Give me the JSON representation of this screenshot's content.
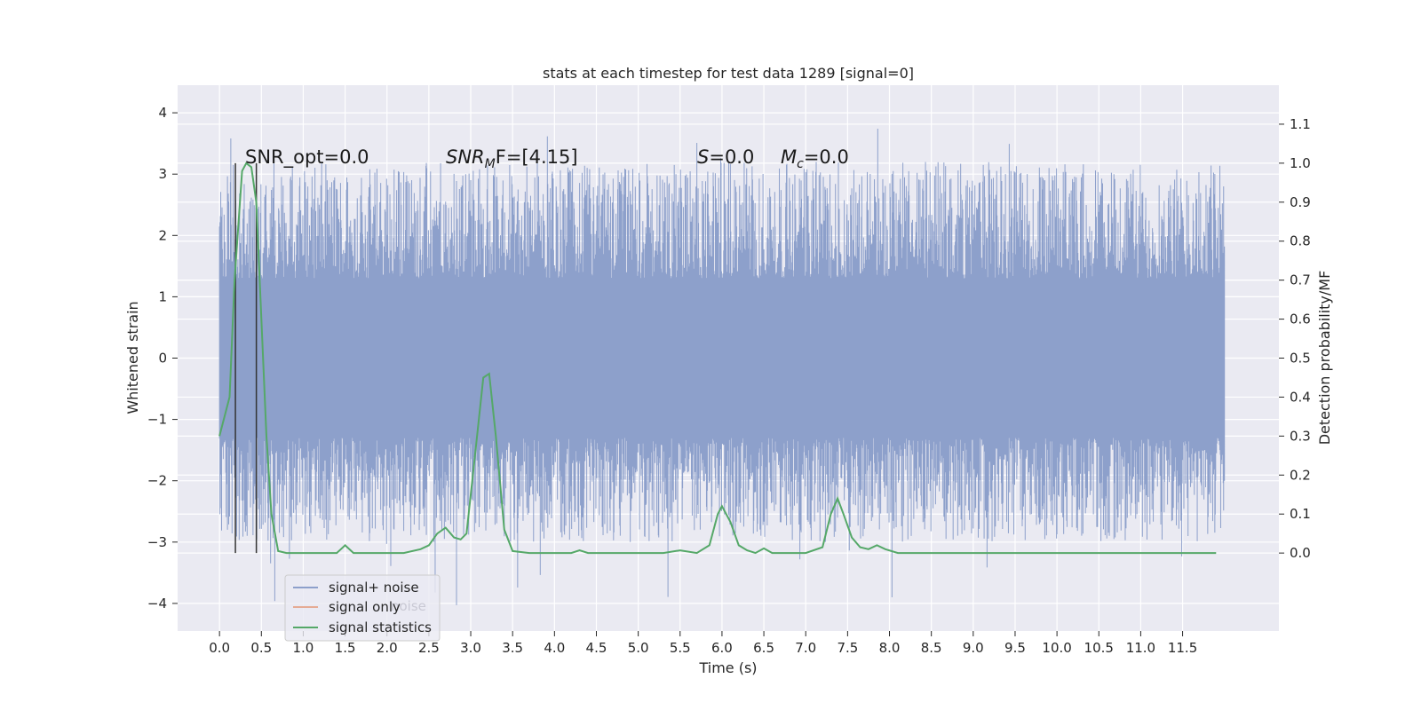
{
  "chart_data": {
    "type": "line",
    "title": "stats at each timestep for test data 1289 [signal=0]",
    "xlabel": "Time (s)",
    "ylabel_left": "Whitened strain",
    "ylabel_right": "Detection probability/MF",
    "xlim": [
      -0.5,
      12.65
    ],
    "ylim_left": [
      -4.45,
      4.45
    ],
    "ylim_right": [
      -0.2,
      1.2
    ],
    "xticks": [
      0.0,
      0.5,
      1.0,
      1.5,
      2.0,
      2.5,
      3.0,
      3.5,
      4.0,
      4.5,
      5.0,
      5.5,
      6.0,
      6.5,
      7.0,
      7.5,
      8.0,
      8.5,
      9.0,
      9.5,
      10.0,
      10.5,
      11.0,
      11.5
    ],
    "xtick_labels": [
      "0.0",
      "0.5",
      "1.0",
      "1.5",
      "2.0",
      "2.5",
      "3.0",
      "3.5",
      "4.0",
      "4.5",
      "5.0",
      "5.5",
      "6.0",
      "6.5",
      "7.0",
      "7.5",
      "8.0",
      "8.5",
      "9.0",
      "9.5",
      "10.0",
      "10.5",
      "11.0",
      "11.5"
    ],
    "yticks_left": [
      4,
      3,
      2,
      1,
      0,
      -1,
      -2,
      -3,
      -4
    ],
    "ytick_labels_left": [
      "4",
      "3",
      "2",
      "1",
      "0",
      "−1",
      "−2",
      "−3",
      "−4"
    ],
    "yticks_right": [
      1.1,
      1.0,
      0.9,
      0.8,
      0.7,
      0.6,
      0.5,
      0.4,
      0.3,
      0.2,
      0.1,
      0.0
    ],
    "ytick_labels_right": [
      "1.1",
      "1.0",
      "0.9",
      "0.8",
      "0.7",
      "0.6",
      "0.5",
      "0.4",
      "0.3",
      "0.2",
      "0.1",
      "0.0"
    ],
    "grid": true,
    "legend_position": "lower-left",
    "series": [
      {
        "name": "signal+ noise",
        "axis": "left",
        "color": "#8da0cb",
        "description_values": {
          "t_start": 0.0,
          "t_end": 12.0,
          "band_min": -1.3,
          "band_max": 1.3,
          "spike_max": 4.1,
          "spike_min": -4.05
        }
      },
      {
        "name": "signal only",
        "axis": "left",
        "color": "#e5ab94"
      },
      {
        "name": "signal statistics",
        "axis": "right",
        "color": "#55a868",
        "x": [
          0.0,
          0.12,
          0.18,
          0.27,
          0.32,
          0.38,
          0.44,
          0.5,
          0.56,
          0.62,
          0.7,
          0.8,
          1.0,
          1.2,
          1.4,
          1.5,
          1.6,
          1.8,
          2.0,
          2.2,
          2.4,
          2.5,
          2.6,
          2.7,
          2.8,
          2.88,
          2.95,
          3.05,
          3.15,
          3.22,
          3.3,
          3.4,
          3.5,
          3.7,
          4.0,
          4.2,
          4.3,
          4.4,
          4.6,
          5.0,
          5.3,
          5.5,
          5.7,
          5.85,
          5.95,
          6.0,
          6.1,
          6.2,
          6.3,
          6.4,
          6.5,
          6.6,
          6.8,
          7.0,
          7.2,
          7.3,
          7.38,
          7.45,
          7.55,
          7.65,
          7.75,
          7.85,
          7.95,
          8.1,
          8.5,
          9.0,
          9.5,
          10.0,
          10.5,
          11.0,
          11.5,
          11.9
        ],
        "values": [
          0.3,
          0.4,
          0.7,
          0.98,
          1.0,
          0.99,
          0.9,
          0.6,
          0.3,
          0.1,
          0.005,
          0.0,
          0.0,
          0.0,
          0.0,
          0.02,
          0.0,
          0.0,
          0.0,
          0.0,
          0.01,
          0.02,
          0.05,
          0.065,
          0.04,
          0.035,
          0.05,
          0.25,
          0.45,
          0.46,
          0.3,
          0.06,
          0.005,
          0.0,
          0.0,
          0.0,
          0.007,
          0.0,
          0.0,
          0.0,
          0.0,
          0.007,
          0.0,
          0.02,
          0.1,
          0.12,
          0.08,
          0.02,
          0.007,
          0.0,
          0.012,
          0.0,
          0.0,
          0.0,
          0.015,
          0.1,
          0.14,
          0.1,
          0.04,
          0.015,
          0.01,
          0.02,
          0.01,
          0.0,
          0.0,
          0.0,
          0.0,
          0.0,
          0.0,
          0.0,
          0.0,
          0.0
        ]
      }
    ],
    "markers": [
      {
        "x": 0.19,
        "y_top_right_axis": 1.0,
        "y_bottom_right_axis": 0.0,
        "color": "#333333"
      },
      {
        "x": 0.44,
        "y_top_right_axis": 1.0,
        "y_bottom_right_axis": 0.0,
        "color": "#333333"
      }
    ],
    "annotations": [
      {
        "text": "SNR_opt=0.0",
        "x_data": 0.2
      },
      {
        "text_main": "SNR",
        "text_sub": "M",
        "text_rest": "F=[4.15]",
        "x_data": 2.6
      },
      {
        "text_main": "S",
        "text_rest": "=0.0",
        "x_data": 5.6
      },
      {
        "text_main": "M",
        "text_sub": "c",
        "text_rest": "=0.0",
        "x_data": 6.6
      }
    ],
    "legend": {
      "entries": [
        "signal+ noise",
        "signal only",
        "signal statistics"
      ],
      "hidden_text": "noise"
    }
  }
}
